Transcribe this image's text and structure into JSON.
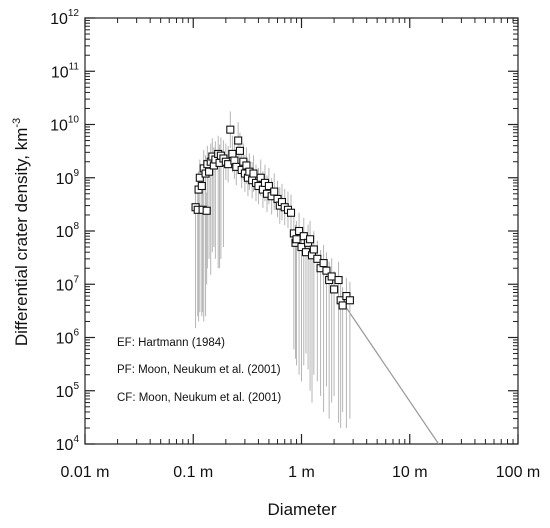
{
  "chart_data": {
    "type": "scatter",
    "xlabel": "Diameter",
    "ylabel": "Differential crater density, km",
    "ylabel_exponent": "-3",
    "x_scale": "log",
    "y_scale": "log",
    "xlim": [
      0.01,
      100
    ],
    "ylim": [
      10000,
      1000000000000
    ],
    "grid": false,
    "x_ticks": [
      {
        "value": 0.01,
        "label": "0.01 m"
      },
      {
        "value": 0.1,
        "label": "0.1 m"
      },
      {
        "value": 1,
        "label": "1 m"
      },
      {
        "value": 10,
        "label": "10 m"
      },
      {
        "value": 100,
        "label": "100 m"
      }
    ],
    "y_ticks": [
      {
        "value": 10000,
        "base": "10",
        "exp": "4"
      },
      {
        "value": 100000,
        "base": "10",
        "exp": "5"
      },
      {
        "value": 1000000,
        "base": "10",
        "exp": "6"
      },
      {
        "value": 10000000,
        "base": "10",
        "exp": "7"
      },
      {
        "value": 100000000,
        "base": "10",
        "exp": "8"
      },
      {
        "value": 1000000000,
        "base": "10",
        "exp": "9"
      },
      {
        "value": 10000000000,
        "base": "10",
        "exp": "10"
      },
      {
        "value": 100000000000,
        "base": "10",
        "exp": "11"
      },
      {
        "value": 1000000000000,
        "base": "10",
        "exp": "12"
      }
    ],
    "annotations": [
      "EF: Hartmann (1984)",
      "PF: Moon, Neukum et al. (2001)",
      "CF: Moon, Neukum et al. (2001)"
    ],
    "reference_line": {
      "x": [
        2.6,
        18.5
      ],
      "y": [
        3600000,
        10000
      ]
    },
    "points": [
      {
        "x": 0.105,
        "y": 280000000,
        "ylow": 1500000
      },
      {
        "x": 0.11,
        "y": 250000000,
        "ylow": 2500000
      },
      {
        "x": 0.112,
        "y": 600000000,
        "ylow": 2000000
      },
      {
        "x": 0.115,
        "y": 1000000000,
        "ylow": 3000000
      },
      {
        "x": 0.12,
        "y": 700000000,
        "ylow": 2500000
      },
      {
        "x": 0.122,
        "y": 250000000,
        "ylow": 3000000
      },
      {
        "x": 0.125,
        "y": 1500000000,
        "ylow": 2000000
      },
      {
        "x": 0.13,
        "y": 1200000000,
        "ylow": 2500000
      },
      {
        "x": 0.133,
        "y": 240000000,
        "ylow": 10000000
      },
      {
        "x": 0.135,
        "y": 1800000000,
        "ylow": 20000000
      },
      {
        "x": 0.14,
        "y": 1300000000,
        "ylow": 30000000
      },
      {
        "x": 0.145,
        "y": 2000000000,
        "ylow": 15000000
      },
      {
        "x": 0.15,
        "y": 2500000000,
        "ylow": 40000000
      },
      {
        "x": 0.155,
        "y": 1700000000,
        "ylow": 50000000
      },
      {
        "x": 0.16,
        "y": 2200000000,
        "ylow": 30000000
      },
      {
        "x": 0.17,
        "y": 2800000000,
        "ylow": 20000000
      },
      {
        "x": 0.175,
        "y": 1900000000,
        "ylow": 20000000
      },
      {
        "x": 0.18,
        "y": 2600000000,
        "ylow": 30000000
      },
      {
        "x": 0.19,
        "y": 2300000000,
        "ylow": 50000000
      },
      {
        "x": 0.2,
        "y": 2000000000
      },
      {
        "x": 0.21,
        "y": 1800000000
      },
      {
        "x": 0.22,
        "y": 8000000000
      },
      {
        "x": 0.23,
        "y": 2800000000
      },
      {
        "x": 0.24,
        "y": 2100000000
      },
      {
        "x": 0.25,
        "y": 1600000000
      },
      {
        "x": 0.26,
        "y": 5000000000
      },
      {
        "x": 0.27,
        "y": 3200000000
      },
      {
        "x": 0.28,
        "y": 1400000000
      },
      {
        "x": 0.29,
        "y": 2000000000
      },
      {
        "x": 0.3,
        "y": 1200000000
      },
      {
        "x": 0.31,
        "y": 1700000000
      },
      {
        "x": 0.32,
        "y": 1000000000
      },
      {
        "x": 0.33,
        "y": 1300000000
      },
      {
        "x": 0.35,
        "y": 900000000
      },
      {
        "x": 0.36,
        "y": 1200000000
      },
      {
        "x": 0.38,
        "y": 800000000
      },
      {
        "x": 0.4,
        "y": 700000000
      },
      {
        "x": 0.42,
        "y": 1000000000
      },
      {
        "x": 0.44,
        "y": 600000000
      },
      {
        "x": 0.46,
        "y": 800000000
      },
      {
        "x": 0.48,
        "y": 500000000
      },
      {
        "x": 0.5,
        "y": 700000000
      },
      {
        "x": 0.53,
        "y": 450000000
      },
      {
        "x": 0.56,
        "y": 550000000
      },
      {
        "x": 0.6,
        "y": 400000000
      },
      {
        "x": 0.63,
        "y": 300000000
      },
      {
        "x": 0.66,
        "y": 350000000
      },
      {
        "x": 0.7,
        "y": 280000000
      },
      {
        "x": 0.75,
        "y": 250000000
      },
      {
        "x": 0.8,
        "y": 220000000
      },
      {
        "x": 0.85,
        "y": 90000000,
        "ylow": 600000
      },
      {
        "x": 0.88,
        "y": 60000000,
        "ylow": 400000
      },
      {
        "x": 0.9,
        "y": 70000000,
        "ylow": 300000
      },
      {
        "x": 0.95,
        "y": 100000000,
        "ylow": 200000
      },
      {
        "x": 1.0,
        "y": 50000000,
        "ylow": 150000
      },
      {
        "x": 1.05,
        "y": 80000000,
        "ylow": 300000
      },
      {
        "x": 1.1,
        "y": 40000000,
        "ylow": 500000
      },
      {
        "x": 1.15,
        "y": 60000000,
        "ylow": 250000
      },
      {
        "x": 1.2,
        "y": 70000000,
        "ylow": 100000
      },
      {
        "x": 1.25,
        "y": 35000000,
        "ylow": 60000
      },
      {
        "x": 1.3,
        "y": 45000000,
        "ylow": 200000
      },
      {
        "x": 1.4,
        "y": 30000000,
        "ylow": 150000
      },
      {
        "x": 1.5,
        "y": 20000000,
        "ylow": 80000
      },
      {
        "x": 1.6,
        "y": 25000000,
        "ylow": 40000
      },
      {
        "x": 1.7,
        "y": 18000000,
        "ylow": 120000
      },
      {
        "x": 1.8,
        "y": 12000000,
        "ylow": 30000
      },
      {
        "x": 1.9,
        "y": 14000000,
        "ylow": 60000
      },
      {
        "x": 2.0,
        "y": 8000000,
        "ylow": 80000
      },
      {
        "x": 2.2,
        "y": 12000000,
        "ylow": 25000
      },
      {
        "x": 2.3,
        "y": 5000000,
        "ylow": 20000
      },
      {
        "x": 2.4,
        "y": 4000000,
        "ylow": 40000
      },
      {
        "x": 2.6,
        "y": 6000000,
        "ylow": 20000
      },
      {
        "x": 2.8,
        "y": 5000000,
        "ylow": 30000
      }
    ]
  }
}
